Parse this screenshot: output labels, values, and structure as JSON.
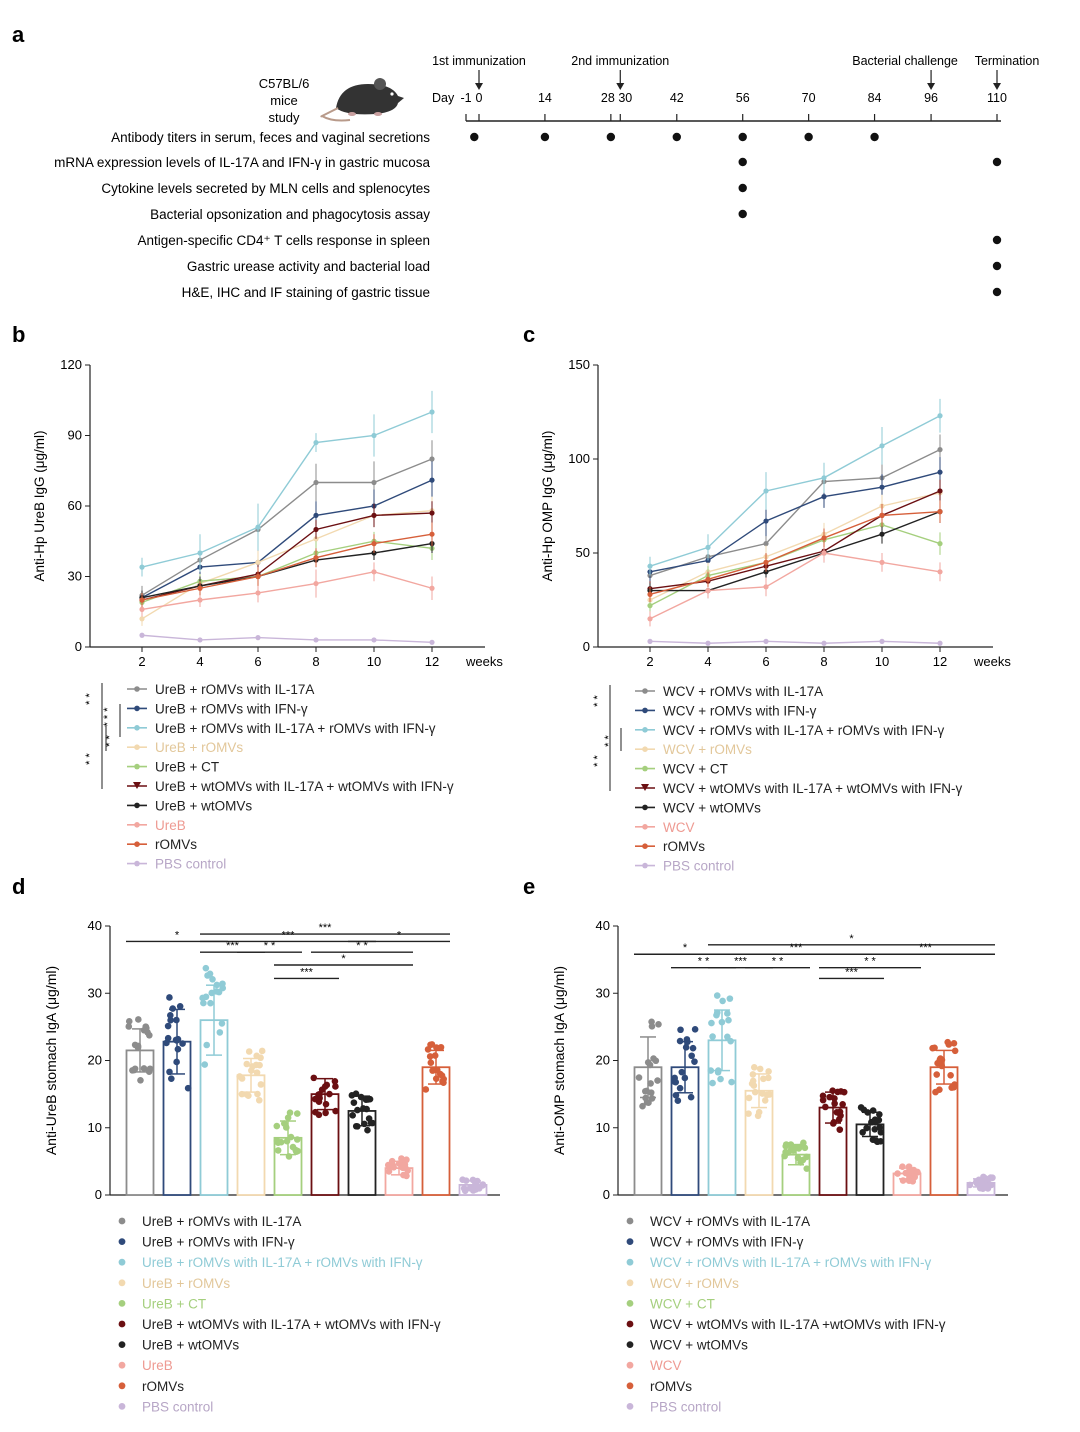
{
  "panel_labels": {
    "a": "a",
    "b": "b",
    "c": "c",
    "d": "d",
    "e": "e"
  },
  "panel_a": {
    "mouse_text": [
      "C57BL/6",
      "mice",
      "study"
    ],
    "events": [
      {
        "label": "1st immunization",
        "day": 0
      },
      {
        "label": "2nd immunization",
        "day": 30
      },
      {
        "label": "Bacterial challenge",
        "day": 96
      },
      {
        "label": "Termination",
        "day": 110
      }
    ],
    "day_prefix": "Day",
    "days": [
      -1,
      0,
      14,
      28,
      30,
      42,
      56,
      70,
      84,
      96,
      110
    ],
    "rows": [
      {
        "label": "Antibody titers in serum, feces and vaginal secretions",
        "days": [
          -1,
          14,
          28,
          42,
          56,
          70,
          84
        ]
      },
      {
        "label": "mRNA expression levels of IL-17A and IFN-γ in gastric mucosa",
        "days": [
          56,
          110
        ]
      },
      {
        "label": "Cytokine levels secreted by MLN cells and splenocytes",
        "days": [
          56
        ]
      },
      {
        "label": "Bacterial opsonization and phagocytosis assay",
        "days": [
          56
        ]
      },
      {
        "label": "Antigen-specific CD4⁺ T cells response in spleen",
        "days": [
          110
        ]
      },
      {
        "label": "Gastric urease activity and bacterial load",
        "days": [
          110
        ]
      },
      {
        "label": "H&E, IHC and IF staining of gastric tissue",
        "days": [
          110
        ]
      }
    ]
  },
  "colors": [
    "#8c8c8c",
    "#2f4a7a",
    "#8fcbd6",
    "#f2d9b0",
    "#a5cf7e",
    "#6b0f12",
    "#222222",
    "#f2a7a0",
    "#d65f3a",
    "#c9b6d9"
  ],
  "chart_data": [
    {
      "id": "b",
      "type": "line",
      "ylabel": "Anti-Hp UreB IgG (μg/ml)",
      "x": [
        2,
        4,
        6,
        8,
        10,
        12
      ],
      "xlabel_suffix": "weeks",
      "ylim": [
        0,
        120
      ],
      "yticks": [
        0,
        30,
        60,
        90,
        120
      ],
      "series": [
        {
          "name": "UreB + rOMVs with IL-17A",
          "values": [
            22,
            37,
            50,
            70,
            70,
            80
          ],
          "err": [
            4,
            9,
            10,
            8,
            9,
            8
          ]
        },
        {
          "name": "UreB + rOMVs with IFN-γ",
          "values": [
            21,
            34,
            36,
            56,
            60,
            71
          ],
          "err": [
            3,
            5,
            6,
            6,
            7,
            8
          ]
        },
        {
          "name": "UreB + rOMVs with IL-17A + rOMVs with IFN-γ",
          "values": [
            34,
            40,
            51,
            87,
            90,
            100
          ],
          "err": [
            4,
            8,
            10,
            4,
            9,
            9
          ]
        },
        {
          "name": "UreB + rOMVs",
          "values": [
            12,
            27,
            36,
            46,
            56,
            58
          ],
          "err": [
            3,
            4,
            5,
            5,
            5,
            6
          ]
        },
        {
          "name": "UreB + CT",
          "values": [
            19,
            28,
            30,
            40,
            45,
            42
          ],
          "err": [
            3,
            3,
            4,
            5,
            4,
            5
          ]
        },
        {
          "name": "UreB + wtOMVs with IL-17A + wtOMVs with IFN-γ",
          "values": [
            20,
            26,
            31,
            50,
            56,
            57
          ],
          "err": [
            3,
            3,
            4,
            4,
            5,
            5
          ]
        },
        {
          "name": "UreB + wtOMVs",
          "values": [
            21,
            26,
            30,
            37,
            40,
            44
          ],
          "err": [
            3,
            4,
            3,
            3,
            3,
            4
          ]
        },
        {
          "name": "UreB",
          "values": [
            16,
            20,
            23,
            27,
            32,
            25
          ],
          "err": [
            3,
            3,
            4,
            6,
            4,
            5
          ]
        },
        {
          "name": "rOMVs",
          "values": [
            20,
            25,
            30,
            38,
            44,
            48
          ],
          "err": [
            3,
            3,
            4,
            4,
            4,
            5
          ]
        },
        {
          "name": "PBS control",
          "values": [
            5,
            3,
            4,
            3,
            3,
            2
          ],
          "err": [
            1,
            1,
            1,
            1,
            1,
            1
          ]
        }
      ],
      "sig": [
        "* *",
        "* * *",
        "* *",
        "* *"
      ]
    },
    {
      "id": "c",
      "type": "line",
      "ylabel": "Anti-Hp OMP IgG (μg/ml)",
      "x": [
        2,
        4,
        6,
        8,
        10,
        12
      ],
      "xlabel_suffix": "weeks",
      "ylim": [
        0,
        150
      ],
      "yticks": [
        0,
        50,
        100,
        150
      ],
      "series": [
        {
          "name": "WCV + rOMVs with IL-17A",
          "values": [
            38,
            48,
            55,
            88,
            90,
            105
          ],
          "err": [
            5,
            6,
            8,
            6,
            8,
            8
          ]
        },
        {
          "name": "WCV + rOMVs with IFN-γ",
          "values": [
            40,
            46,
            67,
            80,
            85,
            93
          ],
          "err": [
            5,
            6,
            8,
            6,
            7,
            8
          ]
        },
        {
          "name": "WCV + rOMVs with IL-17A + rOMVs with IFN-γ",
          "values": [
            43,
            53,
            83,
            90,
            107,
            123
          ],
          "err": [
            5,
            7,
            10,
            8,
            10,
            9
          ]
        },
        {
          "name": "WCV + rOMVs",
          "values": [
            25,
            40,
            48,
            60,
            75,
            82
          ],
          "err": [
            4,
            5,
            6,
            6,
            6,
            6
          ]
        },
        {
          "name": "WCV + CT",
          "values": [
            22,
            38,
            45,
            57,
            65,
            55
          ],
          "err": [
            4,
            5,
            5,
            5,
            6,
            6
          ]
        },
        {
          "name": "WCV + wtOMVs with IL-17A + wtOMVs with IFN-γ",
          "values": [
            31,
            35,
            43,
            51,
            70,
            83
          ],
          "err": [
            4,
            4,
            5,
            5,
            6,
            6
          ]
        },
        {
          "name": "WCV + wtOMVs",
          "values": [
            30,
            30,
            40,
            50,
            60,
            72
          ],
          "err": [
            4,
            4,
            4,
            5,
            5,
            6
          ]
        },
        {
          "name": "WCV",
          "values": [
            15,
            30,
            32,
            50,
            45,
            40
          ],
          "err": [
            4,
            4,
            5,
            5,
            5,
            5
          ]
        },
        {
          "name": "rOMVs",
          "values": [
            28,
            36,
            45,
            58,
            70,
            72
          ],
          "err": [
            4,
            4,
            5,
            5,
            6,
            6
          ]
        },
        {
          "name": "PBS control",
          "values": [
            3,
            2,
            3,
            2,
            3,
            2
          ],
          "err": [
            1,
            1,
            1,
            1,
            1,
            1
          ]
        }
      ],
      "sig": [
        "* *",
        "* *",
        "* *"
      ]
    },
    {
      "id": "d",
      "type": "bar",
      "ylabel": "Anti-UreB stomach IgA (μg/ml)",
      "ylim": [
        0,
        40
      ],
      "yticks": [
        0,
        10,
        20,
        30,
        40
      ],
      "categories": [
        "UreB + rOMVs with IL-17A",
        "UreB + rOMVs with IFN-γ",
        "UreB + rOMVs with IL-17A + rOMVs with IFN-γ",
        "UreB + rOMVs",
        "UreB + CT",
        "UreB + wtOMVs with IL-17A + wtOMVs with IFN-γ",
        "UreB + wtOMVs",
        "UreB",
        "rOMVs",
        "PBS control"
      ],
      "values": [
        21.5,
        22.8,
        26,
        17.8,
        8.5,
        15,
        12.5,
        4,
        19,
        1.5
      ],
      "err": [
        3.2,
        4.8,
        5.2,
        2.5,
        2.5,
        2.3,
        2.2,
        1,
        2.5,
        0.6
      ],
      "sig": [
        {
          "from": 0,
          "to": 2,
          "label": "*",
          "y": 37.7
        },
        {
          "from": 2,
          "to": 8,
          "label": "***",
          "y": 38.8
        },
        {
          "from": 2,
          "to": 6,
          "label": "***",
          "y": 37.7
        },
        {
          "from": 6,
          "to": 8,
          "label": "*",
          "y": 37.7
        },
        {
          "from": 2,
          "to": 3,
          "label": "***",
          "y": 36.1
        },
        {
          "from": 3,
          "to": 4,
          "label": "* *",
          "y": 36.1
        },
        {
          "from": 5,
          "to": 7,
          "label": "* *",
          "y": 36.1
        },
        {
          "from": 4,
          "to": 7,
          "label": "*",
          "y": 34.2
        },
        {
          "from": 4,
          "to": 5,
          "label": "***",
          "y": 32.2
        }
      ]
    },
    {
      "id": "e",
      "type": "bar",
      "ylabel": "Anti-OMP stomach IgA (μg/ml)",
      "ylim": [
        0,
        40
      ],
      "yticks": [
        0,
        10,
        20,
        30,
        40
      ],
      "categories": [
        "WCV + rOMVs with IL-17A",
        "WCV + rOMVs with IFN-γ",
        "WCV + rOMVs with IL-17A + rOMVs with IFN-γ",
        "WCV + rOMVs",
        "WCV + CT",
        "WCV + wtOMVs with IL-17A +wtOMVs with IFN-γ",
        "WCV + wtOMVs",
        "WCV",
        "rOMVs",
        "PBS control"
      ],
      "values": [
        19,
        19,
        23,
        15.5,
        6,
        13,
        10.5,
        3.2,
        19,
        1.8
      ],
      "err": [
        4.5,
        3.8,
        4.5,
        2.5,
        1.5,
        2.3,
        1.8,
        0.8,
        2.5,
        0.6
      ],
      "sig": [
        {
          "from": 0,
          "to": 2,
          "label": "*",
          "y": 35.8
        },
        {
          "from": 2,
          "to": 9,
          "label": "*",
          "y": 37.2
        },
        {
          "from": 2,
          "to": 6,
          "label": "***",
          "y": 35.8
        },
        {
          "from": 6,
          "to": 9,
          "label": "***",
          "y": 35.8
        },
        {
          "from": 1,
          "to": 2,
          "label": "* *",
          "y": 33.8
        },
        {
          "from": 2,
          "to": 3,
          "label": "***",
          "y": 33.8
        },
        {
          "from": 3,
          "to": 4,
          "label": "* *",
          "y": 33.8
        },
        {
          "from": 5,
          "to": 7,
          "label": "* *",
          "y": 33.8
        },
        {
          "from": 5,
          "to": 6,
          "label": "***",
          "y": 32.2
        }
      ]
    }
  ]
}
